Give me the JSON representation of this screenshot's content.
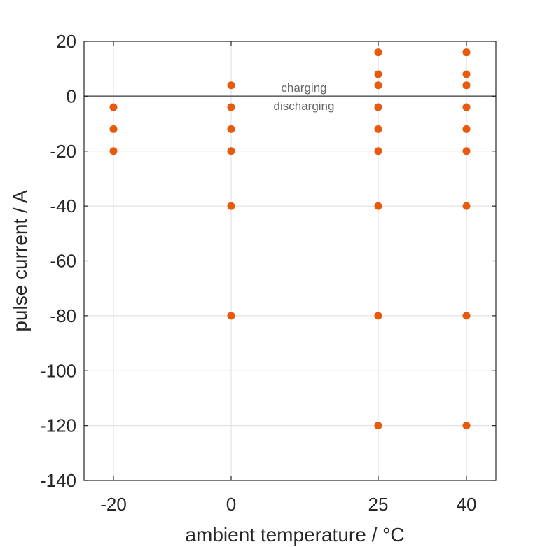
{
  "chart_data": {
    "type": "scatter",
    "title": "",
    "xlabel": "ambient temperature / °C",
    "ylabel": "pulse current / A",
    "x_ticks": [
      -20,
      0,
      25,
      40
    ],
    "y_ticks": [
      20,
      0,
      -20,
      -40,
      -60,
      -80,
      -100,
      -120,
      -140
    ],
    "xlim": [
      -25,
      45
    ],
    "ylim": [
      -140,
      20
    ],
    "grid": true,
    "reference_line": {
      "y": 0,
      "color": "#666666"
    },
    "annotations": {
      "above": "charging",
      "below": "discharging"
    },
    "marker_color": "#e8590c",
    "points": [
      {
        "x": -20,
        "y": -4
      },
      {
        "x": -20,
        "y": -12
      },
      {
        "x": -20,
        "y": -20
      },
      {
        "x": 0,
        "y": 4
      },
      {
        "x": 0,
        "y": -4
      },
      {
        "x": 0,
        "y": -12
      },
      {
        "x": 0,
        "y": -20
      },
      {
        "x": 0,
        "y": -40
      },
      {
        "x": 0,
        "y": -80
      },
      {
        "x": 25,
        "y": 16
      },
      {
        "x": 25,
        "y": 8
      },
      {
        "x": 25,
        "y": 4
      },
      {
        "x": 25,
        "y": -4
      },
      {
        "x": 25,
        "y": -12
      },
      {
        "x": 25,
        "y": -20
      },
      {
        "x": 25,
        "y": -40
      },
      {
        "x": 25,
        "y": -80
      },
      {
        "x": 25,
        "y": -120
      },
      {
        "x": 40,
        "y": 16
      },
      {
        "x": 40,
        "y": 8
      },
      {
        "x": 40,
        "y": 4
      },
      {
        "x": 40,
        "y": -4
      },
      {
        "x": 40,
        "y": -12
      },
      {
        "x": 40,
        "y": -20
      },
      {
        "x": 40,
        "y": -40
      },
      {
        "x": 40,
        "y": -80
      },
      {
        "x": 40,
        "y": -120
      }
    ]
  }
}
